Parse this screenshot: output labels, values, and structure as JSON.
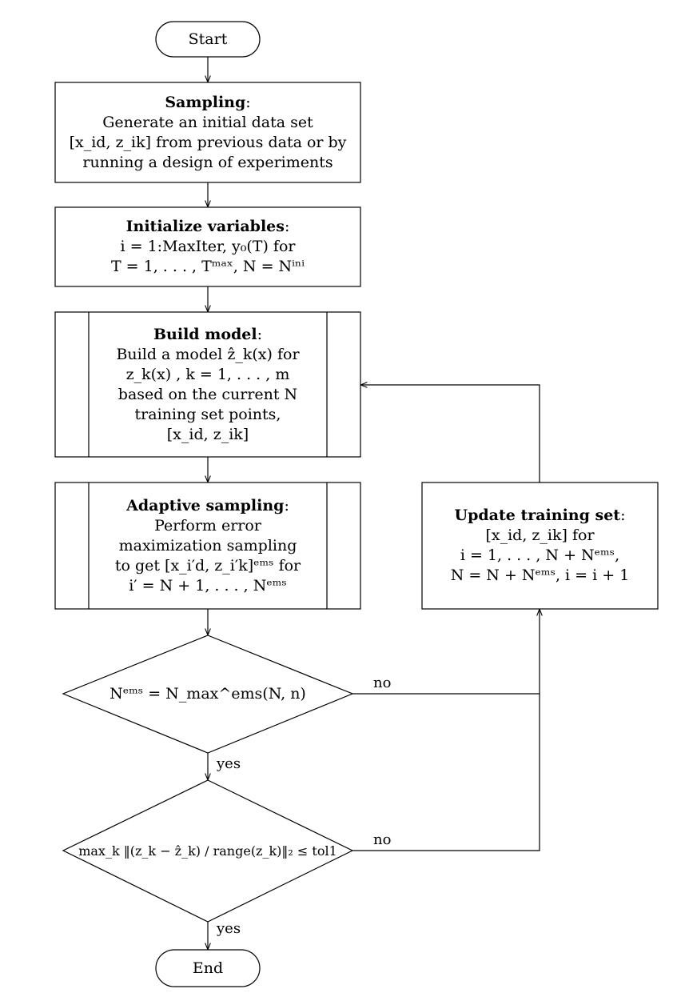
{
  "start": "Start",
  "end": "End",
  "sampling": {
    "title": "Sampling",
    "lines": [
      "Generate an initial data set",
      "[x_id, z_ik] from previous data or by",
      "running a design of experiments"
    ]
  },
  "init": {
    "title": "Initialize variables",
    "lines": [
      "i = 1:MaxIter, y₀(T) for",
      "T = 1, . . . , Tᵐᵃˣ, N = Nⁱⁿⁱ"
    ]
  },
  "build": {
    "title": "Build model",
    "lines": [
      "Build a model ẑ_k(x) for",
      "z_k(x) , k = 1, . . . , m",
      "based on the current N",
      "training set points,",
      "[x_id, z_ik]"
    ]
  },
  "adaptive": {
    "title": "Adaptive sampling",
    "lines": [
      "Perform error",
      "maximization sampling",
      "to get [x_i′d, z_i′k]ᵉᵐˢ for",
      "i′ = N + 1, . . . , Nᵉᵐˢ"
    ]
  },
  "update": {
    "title": "Update training set",
    "lines": [
      "[x_id, z_ik] for",
      "i = 1, . . . , N + Nᵉᵐˢ,",
      "N = N + Nᵉᵐˢ, i = i + 1"
    ]
  },
  "decision1": "Nᵉᵐˢ = N_max^ems(N, n)",
  "decision2": "max_k ‖(z_k − ẑ_k) / range(z_k)‖₂ ≤ tol1",
  "edges": {
    "no": "no",
    "yes": "yes"
  }
}
